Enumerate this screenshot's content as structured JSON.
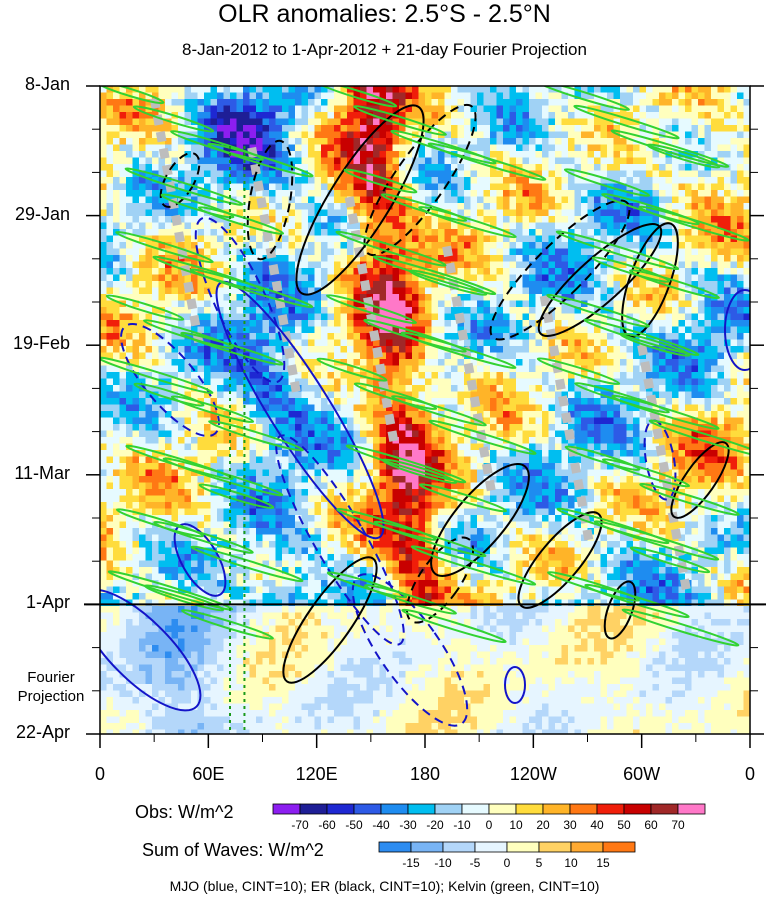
{
  "chart_data": {
    "type": "heatmap",
    "title": "OLR anomalies: 2.5°S - 2.5°N",
    "subtitle": "8-Jan-2012 to 1-Apr-2012 + 21-day Fourier Projection",
    "x_tick_labels": [
      "0",
      "60E",
      "120E",
      "180",
      "120W",
      "60W",
      "0"
    ],
    "x_ticks_deg": [
      0,
      60,
      120,
      180,
      240,
      300,
      360
    ],
    "y_tick_labels": [
      "8-Jan",
      "29-Jan",
      "19-Feb",
      "11-Mar",
      "1-Apr",
      "22-Apr"
    ],
    "y_ticks_day": [
      0,
      21,
      42,
      63,
      84,
      105
    ],
    "xlim": [
      0,
      360
    ],
    "ylim_days": [
      0,
      105
    ],
    "y_direction": "time increases downward",
    "projection_annotation": "Fourier\nProjection",
    "projection_start_label": "1-Apr",
    "grid": false,
    "obs_colorbar": {
      "title": "Obs: W/m^2",
      "levels": [
        -70,
        -60,
        -50,
        -40,
        -30,
        -20,
        -10,
        0,
        10,
        20,
        30,
        40,
        50,
        60,
        70
      ],
      "colors": [
        "#8c1ef0",
        "#1e1e96",
        "#1e28d2",
        "#2d5ae6",
        "#1e8cf0",
        "#00bef0",
        "#a0d2f5",
        "#e6faff",
        "#ffffbe",
        "#ffdc3c",
        "#ffb428",
        "#ff7814",
        "#f01e0a",
        "#c80000",
        "#a02828",
        "#ff78c8"
      ]
    },
    "waves_colorbar": {
      "title": "Sum of Waves: W/m^2",
      "levels": [
        -15,
        -10,
        -5,
        0,
        5,
        10,
        15
      ],
      "colors": [
        "#2d8cf0",
        "#78b4f5",
        "#b4d7fa",
        "#e6f5ff",
        "#ffffbe",
        "#ffd264",
        "#ffaa32",
        "#ff7814"
      ]
    },
    "contours_caption": "MJO (blue, CINT=10); ER (black, CINT=10); Kelvin (green, CINT=10)",
    "series": [
      {
        "name": "MJO",
        "color": "#1414c8"
      },
      {
        "name": "ER",
        "color": "#000000"
      },
      {
        "name": "Kelvin",
        "color": "#32d232"
      }
    ],
    "features": {
      "positive_anomaly_band_lon": [
        150,
        170
      ],
      "negative_anomaly_band_lon": [
        50,
        110
      ],
      "green_vertical_reference_lon": [
        72,
        80
      ]
    }
  }
}
